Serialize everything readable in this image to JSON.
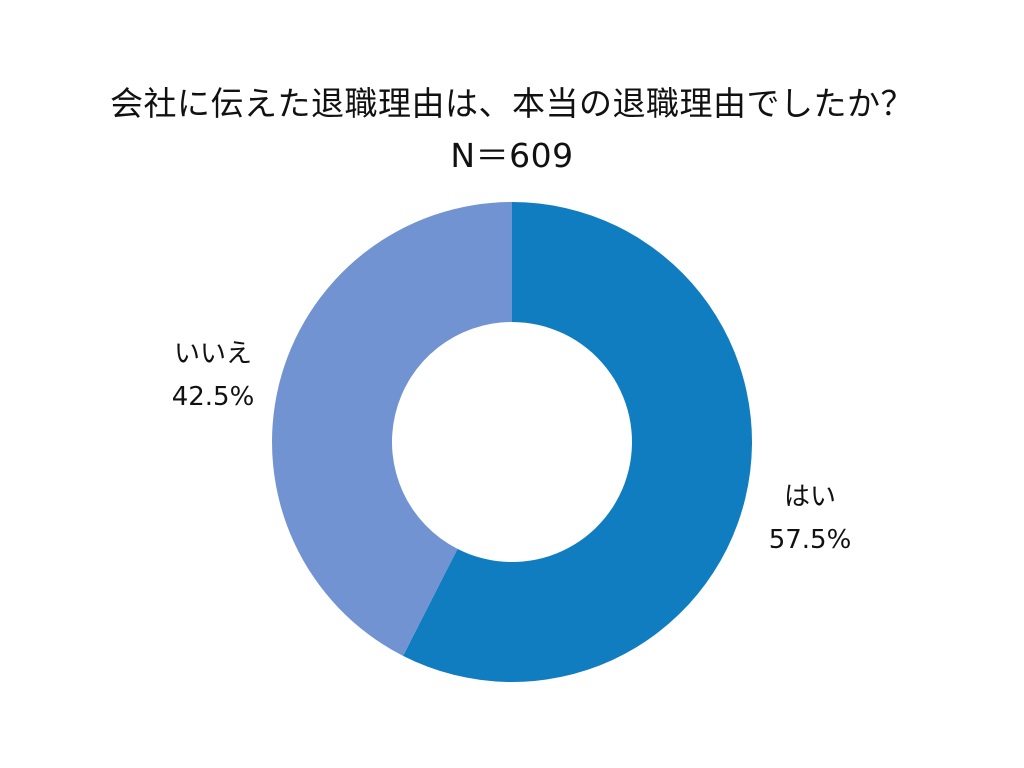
{
  "chart_data": {
    "type": "pie",
    "title": "会社に伝えた退職理由は、本当の退職理由でしたか？",
    "subtitle": "N＝609",
    "donut": true,
    "start_angle_deg": 0,
    "direction": "clockwise",
    "categories": [
      "はい",
      "いいえ"
    ],
    "values": [
      57.5,
      42.5
    ],
    "value_labels": [
      "57.5%",
      "42.5%"
    ],
    "colors": [
      "#0f7dbf",
      "#7293d2"
    ],
    "legend": "none"
  }
}
